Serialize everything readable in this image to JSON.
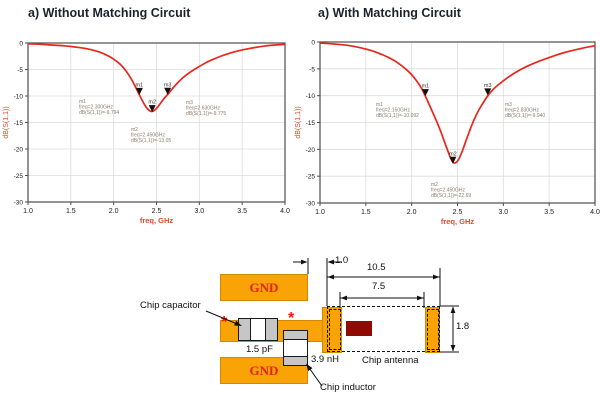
{
  "chart_data": [
    {
      "type": "line",
      "title": "a) Without Matching Circuit",
      "xlabel": "freq, GHz",
      "ylabel": "dB(S(1,1))",
      "xlim": [
        1.0,
        4.0
      ],
      "ylim": [
        -30,
        0
      ],
      "xticks": [
        "1.0",
        "1.5",
        "2.0",
        "2.5",
        "3.0",
        "3.5",
        "4.0"
      ],
      "yticks": [
        "0",
        "-5",
        "-10",
        "-15",
        "-20",
        "-25",
        "-30"
      ],
      "grid": true,
      "legend": "none",
      "line_color": "#e8271c",
      "axis_label_color": "#e0482f",
      "series": [
        {
          "name": "dB(S(1,1))",
          "x": [
            1.0,
            1.1,
            1.2,
            1.3,
            1.4,
            1.5,
            1.6,
            1.7,
            1.8,
            1.9,
            2.0,
            2.1,
            2.2,
            2.3,
            2.35,
            2.4,
            2.45,
            2.5,
            2.55,
            2.6,
            2.63,
            2.7,
            2.8,
            2.9,
            3.0,
            3.1,
            3.2,
            3.3,
            3.4,
            3.5,
            3.6,
            3.7,
            3.8,
            3.9,
            4.0
          ],
          "y": [
            -0.15,
            -0.2,
            -0.3,
            -0.4,
            -0.5,
            -0.65,
            -0.85,
            -1.1,
            -1.5,
            -2.1,
            -3.0,
            -4.3,
            -6.5,
            -9.79,
            -11.4,
            -12.6,
            -13.05,
            -12.4,
            -11.3,
            -10.2,
            -9.78,
            -8.3,
            -6.6,
            -5.4,
            -4.4,
            -3.5,
            -2.8,
            -2.2,
            -1.7,
            -1.3,
            -1.0,
            -0.7,
            -0.5,
            -0.35,
            -0.25
          ]
        }
      ],
      "markers": [
        {
          "id": "m1",
          "freq": 2.3,
          "db": -9.794,
          "ann": [
            "m1",
            "freq=2.300GHz",
            "dB(S(1,1))=-9.794"
          ],
          "ann_at": [
            51,
            60
          ]
        },
        {
          "id": "m2",
          "freq": 2.45,
          "db": -13.05,
          "ann": [
            "m2",
            "freq=2.450GHz",
            "dB(S(1,1))=-13.05"
          ],
          "ann_at": [
            103,
            88
          ]
        },
        {
          "id": "m3",
          "freq": 2.63,
          "db": -9.775,
          "ann": [
            "m3",
            "freq=2.630GHz",
            "dB(S(1,1))=-9.775"
          ],
          "ann_at": [
            158,
            61
          ]
        }
      ]
    },
    {
      "type": "line",
      "title": "a) With Matching Circuit",
      "xlabel": "freq, GHz",
      "ylabel": "dB(S(1,1))",
      "xlim": [
        1.0,
        4.0
      ],
      "ylim": [
        -30,
        0
      ],
      "xticks": [
        "1.0",
        "1.5",
        "2.0",
        "2.5",
        "3.0",
        "3.5",
        "4.0"
      ],
      "yticks": [
        "0",
        "-5",
        "-10",
        "-15",
        "-20",
        "-25",
        "-30"
      ],
      "grid": true,
      "legend": "none",
      "line_color": "#e8271c",
      "axis_label_color": "#e0482f",
      "series": [
        {
          "name": "dB(S(1,1))",
          "x": [
            1.0,
            1.1,
            1.2,
            1.3,
            1.4,
            1.5,
            1.6,
            1.7,
            1.8,
            1.9,
            2.0,
            2.1,
            2.15,
            2.2,
            2.3,
            2.4,
            2.45,
            2.5,
            2.55,
            2.6,
            2.7,
            2.83,
            2.9,
            3.0,
            3.1,
            3.2,
            3.3,
            3.4,
            3.5,
            3.6,
            3.7,
            3.8,
            3.9,
            4.0
          ],
          "y": [
            -0.2,
            -0.3,
            -0.45,
            -0.6,
            -0.9,
            -1.3,
            -1.8,
            -2.5,
            -3.3,
            -4.5,
            -6.0,
            -8.3,
            -10.09,
            -12.0,
            -15.8,
            -20.6,
            -22.69,
            -22.4,
            -20.5,
            -18.0,
            -13.5,
            -9.94,
            -8.6,
            -7.2,
            -6.0,
            -5.0,
            -4.2,
            -3.5,
            -2.9,
            -2.3,
            -1.8,
            -1.4,
            -1.0,
            -0.7
          ]
        }
      ],
      "markers": [
        {
          "id": "m1",
          "freq": 2.15,
          "db": -10.092,
          "ann": [
            "m1",
            "freq=2.150GHz",
            "dB(S(1,1))=-10.092"
          ],
          "ann_at": [
            56,
            64
          ]
        },
        {
          "id": "m2",
          "freq": 2.45,
          "db": -22.69,
          "ann": [
            "m2",
            "freq=2.450GHz",
            "dB(S(1,1))=-22.69"
          ],
          "ann_at": [
            111,
            144
          ]
        },
        {
          "id": "m3",
          "freq": 2.83,
          "db": -9.94,
          "ann": [
            "m3",
            "freq=2.830GHz",
            "dB(S(1,1))=-9.940"
          ],
          "ann_at": [
            185,
            64
          ]
        }
      ]
    }
  ],
  "diagram": {
    "gnd_top": "GND",
    "gnd_bottom": "GND",
    "chip_capacitor_label": "Chip capacitor",
    "capacitor_value": "1.5 pF",
    "inductor_value": "3.9 nH",
    "chip_inductor_label": "Chip inductor",
    "chip_antenna_label": "Chip antenna",
    "dim_gap": "1.0",
    "dim_total_length": "10.5",
    "dim_inner_length": "7.5",
    "dim_height": "1.8",
    "asterisk": "*",
    "colors": {
      "copper": "#f9a306",
      "chip_block": "#8f0a02",
      "gnd_text": "#e32219",
      "curve": "#e8271c",
      "axis_labels": "#e0482f",
      "asterisk": "#ff1500"
    }
  }
}
